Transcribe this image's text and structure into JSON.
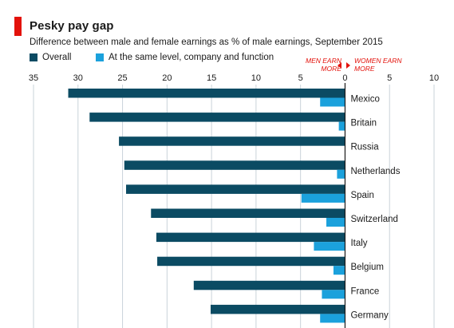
{
  "title": "Pesky pay gap",
  "subtitle": "Difference between male and female earnings as % of male earnings, September 2015",
  "direction": {
    "men_earn_more_line1": "MEN EARN",
    "men_earn_more_line2": "MORE",
    "women_earn_more_line1": "WOMEN EARN",
    "women_earn_more_line2": "MORE"
  },
  "colors": {
    "overall": "#0b4b63",
    "same_level": "#1ba1dc",
    "accent": "#e3120b",
    "grid": "#c9d3da",
    "zero_line": "#1a1a1a"
  },
  "chart_data": {
    "type": "bar",
    "orientation": "horizontal",
    "title": "Pesky pay gap",
    "subtitle": "Difference between male and female earnings as % of male earnings, September 2015",
    "categories": [
      "Mexico",
      "Britain",
      "Russia",
      "Netherlands",
      "Spain",
      "Switzerland",
      "Italy",
      "Belgium",
      "France",
      "Germany"
    ],
    "series": [
      {
        "name": "Overall",
        "color": "#0b4b63",
        "values": [
          -31.1,
          -28.7,
          -25.4,
          -24.8,
          -24.6,
          -21.8,
          -21.2,
          -21.1,
          -17.0,
          -15.1
        ]
      },
      {
        "name": "At the same level, company and function",
        "color": "#1ba1dc",
        "values": [
          -2.8,
          -0.7,
          0,
          -0.9,
          -4.9,
          -2.1,
          -3.5,
          -1.3,
          -2.6,
          -2.8
        ]
      }
    ],
    "xlim": [
      -35,
      10
    ],
    "xticks": [
      -35,
      -30,
      -25,
      -20,
      -15,
      -10,
      -5,
      0,
      5,
      10
    ],
    "xtick_labels": [
      "35",
      "30",
      "25",
      "20",
      "15",
      "10",
      "5",
      "0",
      "5",
      "10"
    ],
    "xaxis_position": "top",
    "grid": true,
    "legend_position": "top-left"
  }
}
